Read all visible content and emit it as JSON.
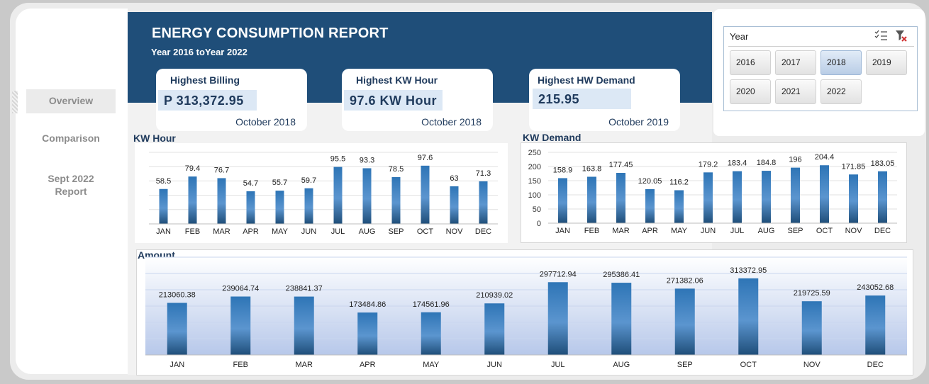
{
  "nav": {
    "items": [
      {
        "label": "Overview",
        "active": true
      },
      {
        "label": "Comparison",
        "active": false
      },
      {
        "label": "Sept 2022\nReport",
        "active": false
      }
    ]
  },
  "header": {
    "title": "ENERGY CONSUMPTION REPORT",
    "subtitle": "Year 2016 toYear 2022"
  },
  "kpis": [
    {
      "label": "Highest Billing",
      "value": "P 313,372.95",
      "date": "October 2018"
    },
    {
      "label": "Highest KW Hour",
      "value": "97.6 KW Hour",
      "date": "October 2018"
    },
    {
      "label": "Highest HW Demand",
      "value": "215.95",
      "date": "October 2019"
    }
  ],
  "slicer": {
    "title": "Year",
    "multi_select_icon": "multi-select-icon",
    "clear_filter_icon": "clear-filter-icon",
    "options": [
      {
        "label": "2016",
        "selected": false
      },
      {
        "label": "2017",
        "selected": false
      },
      {
        "label": "2018",
        "selected": true
      },
      {
        "label": "2019",
        "selected": false
      },
      {
        "label": "2020",
        "selected": false
      },
      {
        "label": "2021",
        "selected": false
      },
      {
        "label": "2022",
        "selected": false
      }
    ]
  },
  "colors": {
    "header": "#1f4e79",
    "bar_dark": "#1f4e79",
    "bar_light": "#2e75b6",
    "accent_box": "#dce8f5"
  },
  "chart_data": [
    {
      "id": "kwh",
      "type": "bar",
      "title": "KW Hour",
      "categories": [
        "JAN",
        "FEB",
        "MAR",
        "APR",
        "MAY",
        "JUN",
        "JUL",
        "AUG",
        "SEP",
        "OCT",
        "NOV",
        "DEC"
      ],
      "values": [
        58.5,
        79.4,
        76.7,
        54.7,
        55.7,
        59.7,
        95.5,
        93.3,
        78.5,
        97.6,
        63,
        71.3
      ],
      "labels": [
        "58.5",
        "79.4",
        "76.7",
        "54.7",
        "55.7",
        "59.7",
        "95.5",
        "93.3",
        "78.5",
        "97.6",
        "63",
        "71.3"
      ],
      "ylim": [
        0,
        120
      ],
      "grid": true,
      "show_y_axis": false
    },
    {
      "id": "kwd",
      "type": "bar",
      "title": "KW Demand",
      "categories": [
        "JAN",
        "FEB",
        "MAR",
        "APR",
        "MAY",
        "JUN",
        "JUL",
        "AUG",
        "SEP",
        "OCT",
        "NOV",
        "DEC"
      ],
      "values": [
        158.9,
        163.8,
        177.45,
        120.05,
        116.2,
        179.2,
        183.4,
        184.8,
        196,
        204.4,
        171.85,
        183.05
      ],
      "labels": [
        "158.9",
        "163.8",
        "177.45",
        "120.05",
        "116.2",
        "179.2",
        "183.4",
        "184.8",
        "196",
        "204.4",
        "171.85",
        "183.05"
      ],
      "ylim": [
        0,
        250
      ],
      "yticks": [
        0,
        50,
        100,
        150,
        200,
        250
      ],
      "grid": true,
      "show_y_axis": true
    },
    {
      "id": "amt",
      "type": "bar",
      "title": "Amount",
      "categories": [
        "JAN",
        "FEB",
        "MAR",
        "APR",
        "MAY",
        "JUN",
        "JUL",
        "AUG",
        "SEP",
        "OCT",
        "NOV",
        "DEC"
      ],
      "values": [
        213060.38,
        239064.74,
        238841.37,
        173484.86,
        174561.96,
        210939.02,
        297712.94,
        295386.41,
        271382.06,
        313372.95,
        219725.59,
        243052.68
      ],
      "labels": [
        "213060.38",
        "239064.74",
        "238841.37",
        "173484.86",
        "174561.96",
        "210939.02",
        "297712.94",
        "295386.41",
        "271382.06",
        "313372.95",
        "219725.59",
        "243052.68"
      ],
      "ylim": [
        0,
        400000
      ],
      "grid": true,
      "show_y_axis": false
    }
  ]
}
